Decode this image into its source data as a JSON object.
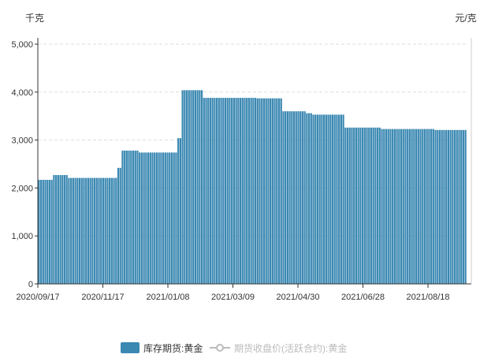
{
  "chart_data": {
    "type": "bar",
    "left_unit": "千克",
    "right_unit": "元/克",
    "ylim": [
      0,
      5000
    ],
    "y_ticks": [
      "0",
      "1,000",
      "2,000",
      "3,000",
      "4,000",
      "5,000"
    ],
    "y_tick_values": [
      0,
      1000,
      2000,
      3000,
      4000,
      5000
    ],
    "x_ticks": [
      "2020/09/17",
      "2020/11/17",
      "2021/01/08",
      "2021/03/09",
      "2021/04/30",
      "2021/06/28",
      "2021/08/18"
    ],
    "grid": true,
    "legend_position": "bottom",
    "series": [
      {
        "name": "库存期货:黄金",
        "color": "#3b88b2",
        "visible": true,
        "segments": [
          {
            "bars": 7,
            "value": 2170
          },
          {
            "bars": 7,
            "value": 2270
          },
          {
            "bars": 23,
            "value": 2210
          },
          {
            "bars": 2,
            "value": 2420
          },
          {
            "bars": 8,
            "value": 2780
          },
          {
            "bars": 18,
            "value": 2740
          },
          {
            "bars": 2,
            "value": 3040
          },
          {
            "bars": 10,
            "value": 4040
          },
          {
            "bars": 25,
            "value": 3880
          },
          {
            "bars": 12,
            "value": 3870
          },
          {
            "bars": 11,
            "value": 3600
          },
          {
            "bars": 3,
            "value": 3560
          },
          {
            "bars": 15,
            "value": 3530
          },
          {
            "bars": 17,
            "value": 3260
          },
          {
            "bars": 25,
            "value": 3230
          },
          {
            "bars": 15,
            "value": 3210
          }
        ]
      },
      {
        "name": "期货收盘价(活跃合约):黄金",
        "color": "#bbbbbb",
        "visible": false
      }
    ]
  }
}
